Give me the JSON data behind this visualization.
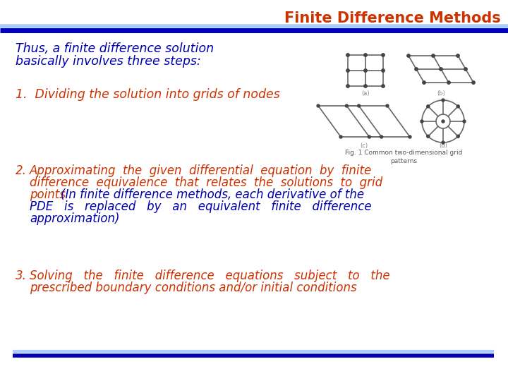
{
  "title": "Finite Difference Methods",
  "title_color": "#cc3300",
  "title_fontsize": 15,
  "bg_color": "#ffffff",
  "header_line_thick_color": "#0000bb",
  "header_line_thin_color": "#aaccff",
  "footer_line_thick_color": "#0000bb",
  "footer_line_thin_color": "#aaccff",
  "intro_text_line1": "Thus, a finite difference solution",
  "intro_text_line2": "basically involves three steps:",
  "intro_color": "#0000aa",
  "intro_fontsize": 12.5,
  "step1_text": "1.  Dividing the solution into grids of nodes",
  "step1_color": "#cc3300",
  "step1_fontsize": 12.5,
  "step2_num_text": "2.",
  "step2_orange_line1": "Approximating  the  given  differential  equation  by  finite",
  "step2_orange_line2": "difference  equivalence  that  relates  the  solutions  to  grid",
  "step2_orange_line3": "points ",
  "step2_blue_inline": "(In finite difference methods, each derivative of the",
  "step2_blue_line2": "PDE   is   replaced   by   an   equivalent   finite   difference",
  "step2_blue_line3": "approximation)",
  "step2_color_orange": "#cc3300",
  "step2_color_blue": "#0000aa",
  "step2_fontsize": 12.0,
  "step3_num_text": "3.",
  "step3_line1": "Solving   the   finite   difference   equations   subject   to   the",
  "step3_line2": "prescribed boundary conditions and/or initial conditions",
  "step3_color": "#cc3300",
  "step3_fontsize": 12.0,
  "fig_caption": "Fig. 1 Common two-dimensional grid\npatterns",
  "fig_caption_color": "#555555",
  "fig_caption_fontsize": 6.5,
  "grid_color": "#666666",
  "node_color": "#444444"
}
